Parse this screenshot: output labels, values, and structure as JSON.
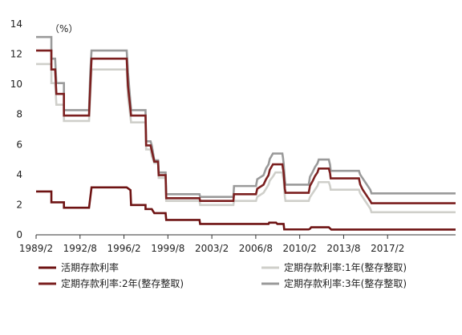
{
  "chart_data": {
    "type": "line",
    "unit": "（%）",
    "ylim": [
      0,
      14
    ],
    "yticks": [
      0,
      2,
      4,
      6,
      8,
      10,
      12,
      14
    ],
    "xlim": [
      1989.083,
      2022.5
    ],
    "xticks": [
      {
        "label": "1989/2",
        "value": 1989.083
      },
      {
        "label": "1992/8",
        "value": 1992.583
      },
      {
        "label": "1996/2",
        "value": 1996.083
      },
      {
        "label": "1999/8",
        "value": 1999.583
      },
      {
        "label": "2003/2",
        "value": 2003.083
      },
      {
        "label": "2006/8",
        "value": 2006.583
      },
      {
        "label": "2010/2",
        "value": 2010.083
      },
      {
        "label": "2013/8",
        "value": 2013.583
      },
      {
        "label": "2017/2",
        "value": 2017.083
      }
    ],
    "grid": false,
    "legend_position": "bottom",
    "series": [
      {
        "name": "活期存款利率",
        "color": "#6e1313",
        "points": [
          [
            1989.083,
            2.88
          ],
          [
            1990.3,
            2.88
          ],
          [
            1990.3,
            2.16
          ],
          [
            1991.3,
            2.16
          ],
          [
            1991.3,
            1.8
          ],
          [
            1993.3,
            1.8
          ],
          [
            1993.5,
            3.15
          ],
          [
            1996.3,
            3.15
          ],
          [
            1996.6,
            2.97
          ],
          [
            1996.65,
            1.98
          ],
          [
            1997.8,
            1.98
          ],
          [
            1997.8,
            1.71
          ],
          [
            1998.3,
            1.71
          ],
          [
            1998.5,
            1.44
          ],
          [
            1999.4,
            1.44
          ],
          [
            1999.45,
            0.99
          ],
          [
            2002.1,
            0.99
          ],
          [
            2002.15,
            0.72
          ],
          [
            2007.6,
            0.72
          ],
          [
            2007.65,
            0.81
          ],
          [
            2008.2,
            0.81
          ],
          [
            2008.3,
            0.72
          ],
          [
            2008.8,
            0.72
          ],
          [
            2008.85,
            0.36
          ],
          [
            2010.8,
            0.36
          ],
          [
            2010.9,
            0.4
          ],
          [
            2011.0,
            0.5
          ],
          [
            2012.4,
            0.5
          ],
          [
            2012.6,
            0.35
          ],
          [
            2022.5,
            0.35
          ]
        ]
      },
      {
        "name": "定期存款利率:1年(整存整取)",
        "color": "#cfcfca",
        "points": [
          [
            1989.083,
            11.34
          ],
          [
            1990.3,
            11.34
          ],
          [
            1990.3,
            10.08
          ],
          [
            1990.6,
            10.08
          ],
          [
            1990.7,
            8.64
          ],
          [
            1991.3,
            8.64
          ],
          [
            1991.3,
            7.56
          ],
          [
            1993.3,
            7.56
          ],
          [
            1993.4,
            9.18
          ],
          [
            1993.5,
            10.98
          ],
          [
            1996.3,
            10.98
          ],
          [
            1996.4,
            9.18
          ],
          [
            1996.65,
            7.47
          ],
          [
            1997.8,
            7.47
          ],
          [
            1997.85,
            5.67
          ],
          [
            1998.2,
            5.67
          ],
          [
            1998.3,
            5.22
          ],
          [
            1998.5,
            4.77
          ],
          [
            1998.8,
            4.77
          ],
          [
            1998.85,
            3.78
          ],
          [
            1999.4,
            3.78
          ],
          [
            1999.45,
            2.25
          ],
          [
            2002.1,
            2.25
          ],
          [
            2002.15,
            1.98
          ],
          [
            2004.8,
            1.98
          ],
          [
            2004.85,
            2.25
          ],
          [
            2006.6,
            2.25
          ],
          [
            2006.7,
            2.52
          ],
          [
            2007.2,
            2.79
          ],
          [
            2007.4,
            3.06
          ],
          [
            2007.6,
            3.33
          ],
          [
            2007.7,
            3.6
          ],
          [
            2007.95,
            3.87
          ],
          [
            2008.15,
            4.14
          ],
          [
            2008.7,
            4.14
          ],
          [
            2008.75,
            3.87
          ],
          [
            2008.8,
            3.6
          ],
          [
            2008.9,
            2.52
          ],
          [
            2008.95,
            2.25
          ],
          [
            2010.8,
            2.25
          ],
          [
            2010.9,
            2.5
          ],
          [
            2011.1,
            2.75
          ],
          [
            2011.3,
            3.0
          ],
          [
            2011.5,
            3.25
          ],
          [
            2011.6,
            3.5
          ],
          [
            2012.4,
            3.5
          ],
          [
            2012.5,
            3.25
          ],
          [
            2012.55,
            3.0
          ],
          [
            2014.8,
            3.0
          ],
          [
            2014.9,
            2.75
          ],
          [
            2015.1,
            2.5
          ],
          [
            2015.3,
            2.25
          ],
          [
            2015.5,
            2.0
          ],
          [
            2015.7,
            1.75
          ],
          [
            2015.8,
            1.5
          ],
          [
            2022.5,
            1.5
          ]
        ]
      },
      {
        "name": "定期存款利率:2年(整存整取)",
        "color": "#7b1f1f",
        "points": [
          [
            1989.083,
            12.24
          ],
          [
            1990.3,
            12.24
          ],
          [
            1990.3,
            10.98
          ],
          [
            1990.6,
            10.98
          ],
          [
            1990.7,
            9.36
          ],
          [
            1991.3,
            9.36
          ],
          [
            1991.3,
            7.92
          ],
          [
            1993.3,
            7.92
          ],
          [
            1993.4,
            9.9
          ],
          [
            1993.5,
            11.7
          ],
          [
            1996.3,
            11.7
          ],
          [
            1996.4,
            9.9
          ],
          [
            1996.65,
            7.92
          ],
          [
            1997.8,
            7.92
          ],
          [
            1997.85,
            5.94
          ],
          [
            1998.2,
            5.94
          ],
          [
            1998.3,
            5.58
          ],
          [
            1998.5,
            4.86
          ],
          [
            1998.8,
            4.86
          ],
          [
            1998.85,
            3.96
          ],
          [
            1999.4,
            3.96
          ],
          [
            1999.45,
            2.43
          ],
          [
            2002.1,
            2.43
          ],
          [
            2002.15,
            2.25
          ],
          [
            2004.8,
            2.25
          ],
          [
            2004.85,
            2.7
          ],
          [
            2006.6,
            2.7
          ],
          [
            2006.7,
            3.06
          ],
          [
            2007.2,
            3.33
          ],
          [
            2007.4,
            3.69
          ],
          [
            2007.6,
            3.96
          ],
          [
            2007.7,
            4.32
          ],
          [
            2007.95,
            4.68
          ],
          [
            2008.7,
            4.68
          ],
          [
            2008.75,
            4.41
          ],
          [
            2008.8,
            4.14
          ],
          [
            2008.9,
            3.06
          ],
          [
            2008.95,
            2.79
          ],
          [
            2010.8,
            2.79
          ],
          [
            2010.9,
            3.25
          ],
          [
            2011.1,
            3.55
          ],
          [
            2011.3,
            3.9
          ],
          [
            2011.5,
            4.15
          ],
          [
            2011.6,
            4.4
          ],
          [
            2012.4,
            4.4
          ],
          [
            2012.5,
            4.1
          ],
          [
            2012.55,
            3.75
          ],
          [
            2014.8,
            3.75
          ],
          [
            2014.9,
            3.35
          ],
          [
            2015.1,
            3.0
          ],
          [
            2015.3,
            2.75
          ],
          [
            2015.5,
            2.5
          ],
          [
            2015.7,
            2.25
          ],
          [
            2015.8,
            2.1
          ],
          [
            2022.5,
            2.1
          ]
        ]
      },
      {
        "name": "定期存款利率:3年(整存整取)",
        "color": "#9a9a9a",
        "points": [
          [
            1989.083,
            13.14
          ],
          [
            1990.3,
            13.14
          ],
          [
            1990.3,
            11.7
          ],
          [
            1990.6,
            11.7
          ],
          [
            1990.7,
            10.08
          ],
          [
            1991.3,
            10.08
          ],
          [
            1991.3,
            8.28
          ],
          [
            1993.3,
            8.28
          ],
          [
            1993.4,
            10.8
          ],
          [
            1993.5,
            12.24
          ],
          [
            1996.3,
            12.24
          ],
          [
            1996.4,
            10.8
          ],
          [
            1996.65,
            8.28
          ],
          [
            1997.8,
            8.28
          ],
          [
            1997.85,
            6.21
          ],
          [
            1998.2,
            6.21
          ],
          [
            1998.3,
            5.94
          ],
          [
            1998.5,
            4.95
          ],
          [
            1998.8,
            4.95
          ],
          [
            1998.85,
            4.14
          ],
          [
            1999.4,
            4.14
          ],
          [
            1999.45,
            2.7
          ],
          [
            2002.1,
            2.7
          ],
          [
            2002.15,
            2.52
          ],
          [
            2004.8,
            2.52
          ],
          [
            2004.85,
            3.24
          ],
          [
            2006.6,
            3.24
          ],
          [
            2006.7,
            3.69
          ],
          [
            2007.2,
            3.96
          ],
          [
            2007.4,
            4.41
          ],
          [
            2007.6,
            4.68
          ],
          [
            2007.7,
            5.04
          ],
          [
            2007.95,
            5.4
          ],
          [
            2008.7,
            5.4
          ],
          [
            2008.75,
            5.13
          ],
          [
            2008.8,
            4.77
          ],
          [
            2008.9,
            3.6
          ],
          [
            2008.95,
            3.33
          ],
          [
            2010.8,
            3.33
          ],
          [
            2010.9,
            3.85
          ],
          [
            2011.1,
            4.15
          ],
          [
            2011.3,
            4.5
          ],
          [
            2011.5,
            4.75
          ],
          [
            2011.6,
            5.0
          ],
          [
            2012.4,
            5.0
          ],
          [
            2012.5,
            4.65
          ],
          [
            2012.55,
            4.25
          ],
          [
            2014.8,
            4.25
          ],
          [
            2014.9,
            4.0
          ],
          [
            2015.1,
            3.75
          ],
          [
            2015.3,
            3.5
          ],
          [
            2015.5,
            3.25
          ],
          [
            2015.7,
            3.0
          ],
          [
            2015.8,
            2.75
          ],
          [
            2022.5,
            2.75
          ]
        ]
      }
    ],
    "legend": [
      {
        "label": "活期存款利率",
        "color": "#6e1313",
        "pos": "bottom-left-1"
      },
      {
        "label": "定期存款利率:1年(整存整取)",
        "color": "#cfcfca",
        "pos": "bottom-right-1"
      },
      {
        "label": "定期存款利率:2年(整存整取)",
        "color": "#7b1f1f",
        "pos": "bottom-left-2"
      },
      {
        "label": "定期存款利率:3年(整存整取)",
        "color": "#9a9a9a",
        "pos": "bottom-right-2"
      }
    ]
  }
}
